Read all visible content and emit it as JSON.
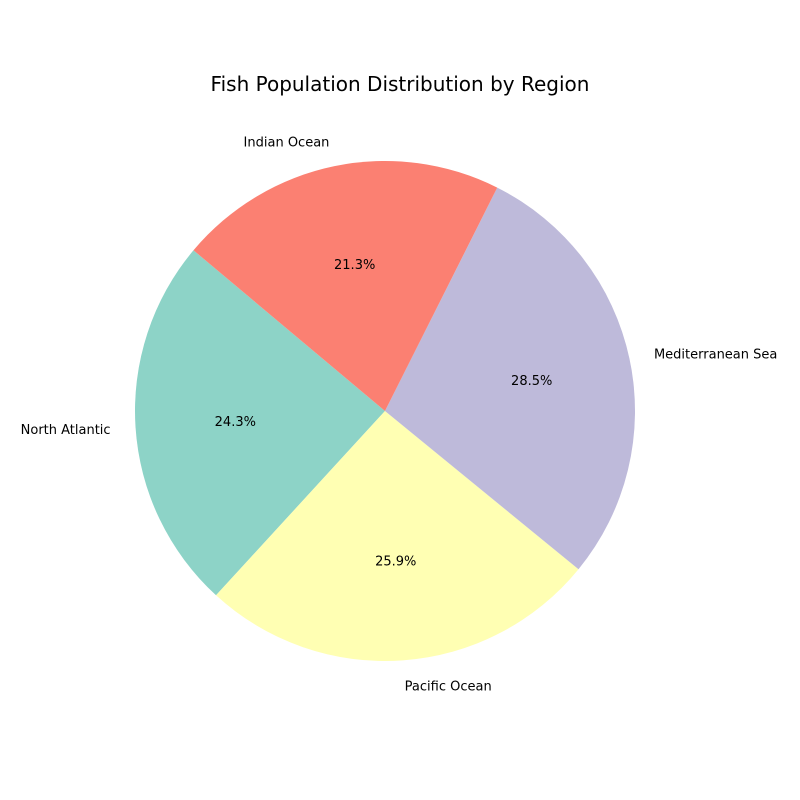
{
  "chart_data": {
    "type": "pie",
    "title": "Fish Population Distribution by Region",
    "categories": [
      "North Atlantic",
      "Pacific Ocean",
      "Mediterranean Sea",
      "Indian Ocean"
    ],
    "values": [
      24.3,
      25.9,
      28.5,
      21.3
    ],
    "percent_labels": [
      "24.3%",
      "25.9%",
      "28.5%",
      "21.3%"
    ],
    "colors": [
      "#8dd3c7",
      "#ffffb3",
      "#bebada",
      "#fb8072"
    ],
    "start_angle_deg": 140,
    "direction": "counterclockwise"
  }
}
